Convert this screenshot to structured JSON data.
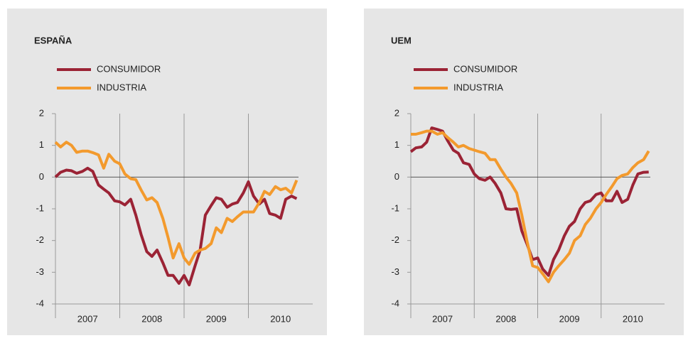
{
  "chart_data": [
    {
      "type": "line",
      "title": "ESPAÑA",
      "x": [
        2007,
        2007.08,
        2007.17,
        2007.25,
        2007.33,
        2007.42,
        2007.5,
        2007.58,
        2007.67,
        2007.75,
        2007.83,
        2007.92,
        2008,
        2008.08,
        2008.17,
        2008.25,
        2008.33,
        2008.42,
        2008.5,
        2008.58,
        2008.67,
        2008.75,
        2008.83,
        2008.92,
        2009,
        2009.08,
        2009.17,
        2009.25,
        2009.33,
        2009.42,
        2009.5,
        2009.58,
        2009.67,
        2009.75,
        2009.83,
        2009.92,
        2010,
        2010.08,
        2010.17,
        2010.25,
        2010.33,
        2010.42,
        2010.5,
        2010.58,
        2010.67,
        2010.75
      ],
      "series": [
        {
          "name": "CONSUMIDOR",
          "color": "#9b2335",
          "values": [
            0,
            0.15,
            0.22,
            0.2,
            0.12,
            0.18,
            0.28,
            0.18,
            -0.25,
            -0.38,
            -0.5,
            -0.75,
            -0.78,
            -0.88,
            -0.7,
            -1.2,
            -1.8,
            -2.35,
            -2.5,
            -2.3,
            -2.7,
            -3.1,
            -3.1,
            -3.35,
            -3.1,
            -3.4,
            -2.8,
            -2.3,
            -1.2,
            -0.9,
            -0.65,
            -0.7,
            -0.95,
            -0.85,
            -0.8,
            -0.5,
            -0.15,
            -0.6,
            -0.85,
            -0.7,
            -1.15,
            -1.2,
            -1.3,
            -0.7,
            -0.6,
            -0.68
          ]
        },
        {
          "name": "INDUSTRIA",
          "color": "#f39a2d",
          "values": [
            1.1,
            0.95,
            1.1,
            1.0,
            0.78,
            0.82,
            0.82,
            0.77,
            0.7,
            0.28,
            0.72,
            0.5,
            0.42,
            0.1,
            -0.05,
            -0.08,
            -0.4,
            -0.72,
            -0.65,
            -0.8,
            -1.3,
            -1.9,
            -2.55,
            -2.1,
            -2.55,
            -2.75,
            -2.4,
            -2.3,
            -2.25,
            -2.1,
            -1.6,
            -1.75,
            -1.3,
            -1.4,
            -1.25,
            -1.1,
            -1.1,
            -1.1,
            -0.8,
            -0.45,
            -0.55,
            -0.3,
            -0.4,
            -0.35,
            -0.5,
            -0.1
          ]
        }
      ],
      "xlim": [
        2007,
        2011
      ],
      "xticks": [
        {
          "value": 2007.5,
          "label": "2007"
        },
        {
          "value": 2008.5,
          "label": "2008"
        },
        {
          "value": 2009.5,
          "label": "2009"
        },
        {
          "value": 2010.5,
          "label": "2010"
        }
      ],
      "xgrid": [
        2008,
        2009,
        2010
      ],
      "ylim": [
        -4,
        2
      ],
      "yticks": [
        -4,
        -3,
        -2,
        -1,
        0,
        1,
        2
      ],
      "reference_line": 0
    },
    {
      "type": "line",
      "title": "UEM",
      "x": [
        2007,
        2007.08,
        2007.17,
        2007.25,
        2007.33,
        2007.42,
        2007.5,
        2007.58,
        2007.67,
        2007.75,
        2007.83,
        2007.92,
        2008,
        2008.08,
        2008.17,
        2008.25,
        2008.33,
        2008.42,
        2008.5,
        2008.58,
        2008.67,
        2008.75,
        2008.83,
        2008.92,
        2009,
        2009.08,
        2009.17,
        2009.25,
        2009.33,
        2009.42,
        2009.5,
        2009.58,
        2009.67,
        2009.75,
        2009.83,
        2009.92,
        2010,
        2010.08,
        2010.17,
        2010.25,
        2010.33,
        2010.42,
        2010.5,
        2010.58,
        2010.67,
        2010.75
      ],
      "series": [
        {
          "name": "CONSUMIDOR",
          "color": "#9b2335",
          "values": [
            0.8,
            0.92,
            0.95,
            1.1,
            1.55,
            1.5,
            1.45,
            1.15,
            0.85,
            0.75,
            0.45,
            0.4,
            0.1,
            -0.05,
            -0.1,
            0,
            -0.2,
            -0.5,
            -1.0,
            -1.02,
            -1.0,
            -1.7,
            -2.1,
            -2.6,
            -2.55,
            -2.9,
            -3.1,
            -2.6,
            -2.3,
            -1.85,
            -1.55,
            -1.4,
            -1.0,
            -0.8,
            -0.75,
            -0.55,
            -0.5,
            -0.75,
            -0.75,
            -0.45,
            -0.8,
            -0.7,
            -0.25,
            0.1,
            0.15,
            0.16
          ]
        },
        {
          "name": "INDUSTRIA",
          "color": "#f39a2d",
          "values": [
            1.35,
            1.35,
            1.4,
            1.45,
            1.45,
            1.35,
            1.4,
            1.25,
            1.1,
            0.95,
            1.0,
            0.9,
            0.85,
            0.8,
            0.75,
            0.55,
            0.55,
            0.25,
            0,
            -0.2,
            -0.5,
            -1.2,
            -2.0,
            -2.8,
            -2.85,
            -3.05,
            -3.3,
            -3.0,
            -2.8,
            -2.6,
            -2.4,
            -2.0,
            -1.85,
            -1.5,
            -1.3,
            -1.0,
            -0.8,
            -0.55,
            -0.3,
            -0.05,
            0.05,
            0.1,
            0.3,
            0.45,
            0.55,
            0.82
          ]
        }
      ],
      "xlim": [
        2007,
        2011
      ],
      "xticks": [
        {
          "value": 2007.5,
          "label": "2007"
        },
        {
          "value": 2008.5,
          "label": "2008"
        },
        {
          "value": 2009.5,
          "label": "2009"
        },
        {
          "value": 2010.5,
          "label": "2010"
        }
      ],
      "xgrid": [
        2008,
        2009,
        2010
      ],
      "ylim": [
        -4,
        2
      ],
      "yticks": [
        -4,
        -3,
        -2,
        -1,
        0,
        1,
        2
      ],
      "reference_line": 0
    }
  ]
}
